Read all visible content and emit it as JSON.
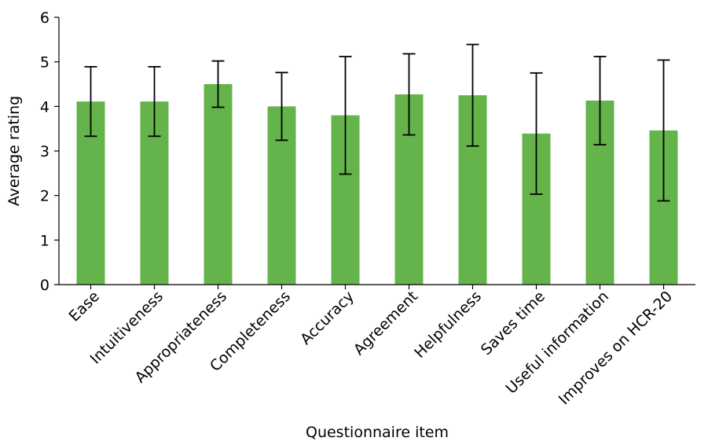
{
  "chart_data": {
    "type": "bar",
    "title": "",
    "xlabel": "Questionnaire item",
    "ylabel": "Average rating",
    "ylim": [
      0,
      6
    ],
    "yticks": [
      "0",
      "1",
      "2",
      "3",
      "4",
      "5",
      "6"
    ],
    "bar_color": "#64b44b",
    "grid": false,
    "categories": [
      "Ease",
      "Intuitiveness",
      "Appropriateness",
      "Completeness",
      "Accuracy",
      "Agreement",
      "Helpfulness",
      "Saves time",
      "Useful information",
      "Improves on HCR-20"
    ],
    "values": [
      4.11,
      4.11,
      4.5,
      4.0,
      3.8,
      4.27,
      4.25,
      3.39,
      4.13,
      3.46
    ],
    "error_upper": [
      4.89,
      4.89,
      5.02,
      4.76,
      5.12,
      5.18,
      5.39,
      4.75,
      5.12,
      5.04
    ],
    "error_lower": [
      3.33,
      3.33,
      3.98,
      3.24,
      2.48,
      3.36,
      3.11,
      2.03,
      3.14,
      1.88
    ]
  }
}
